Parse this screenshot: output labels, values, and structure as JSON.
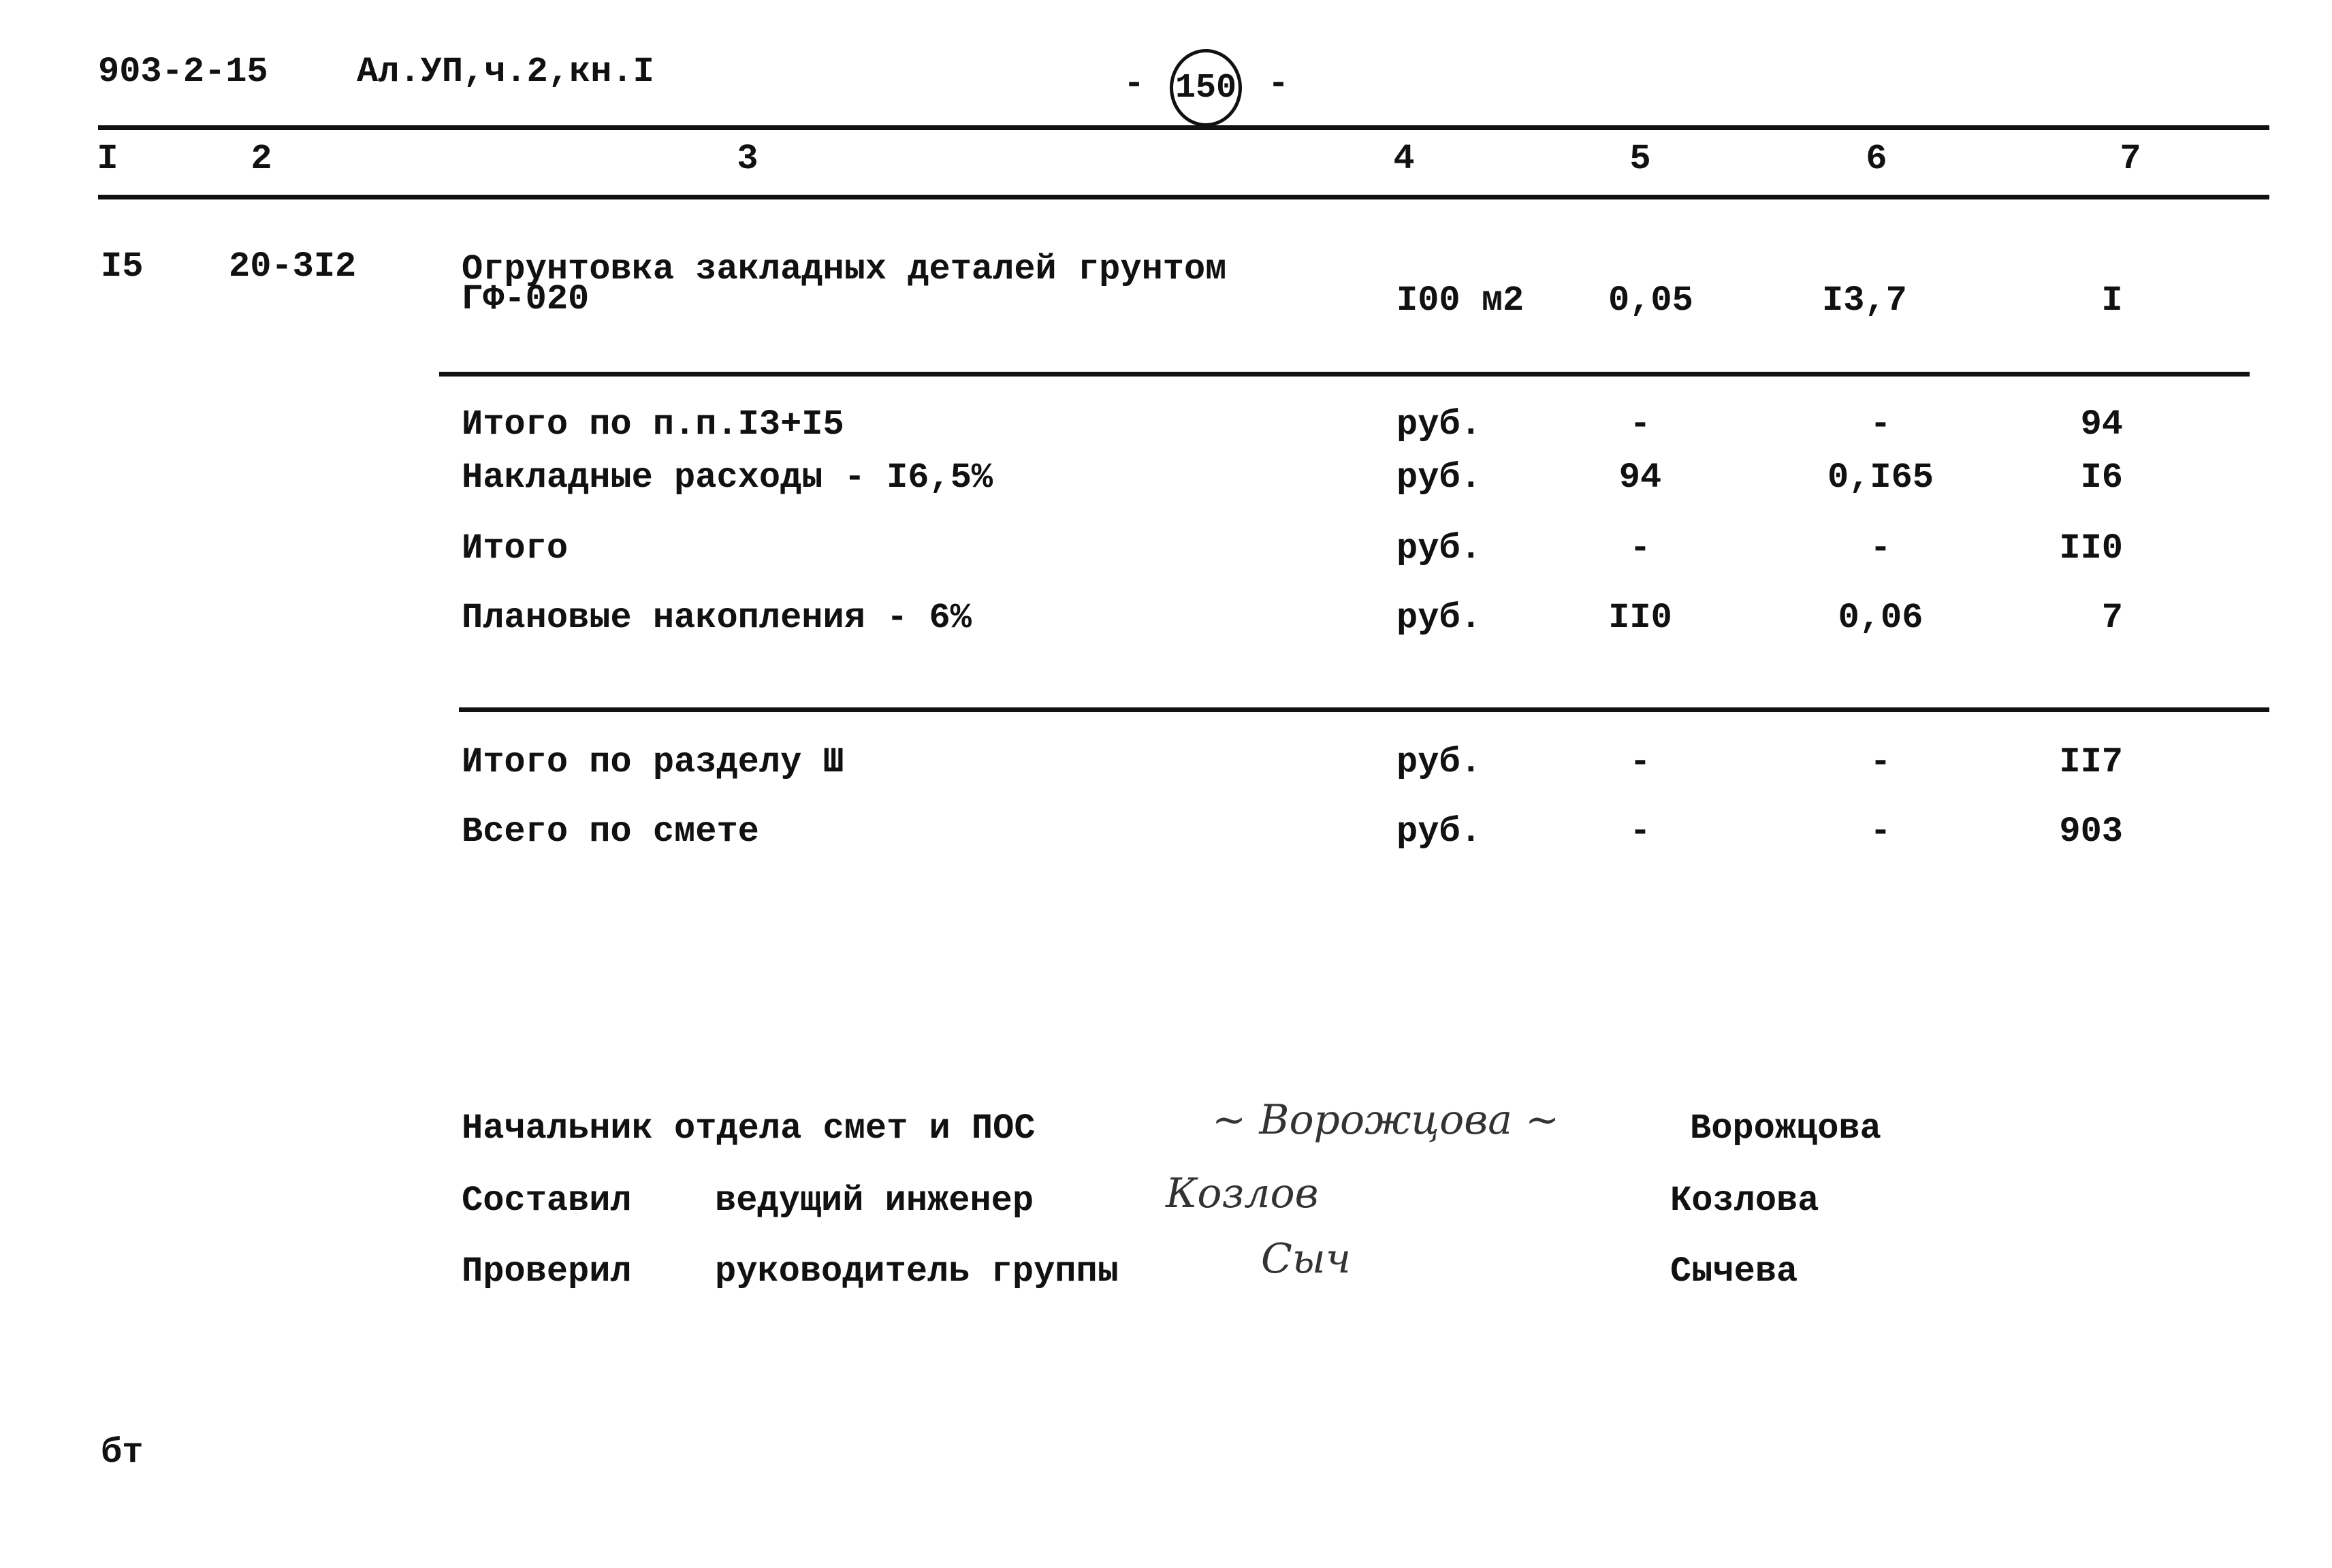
{
  "header": {
    "doc_code": "903-2-15",
    "album": "Ал.УП,ч.2,кн.I",
    "page_number": "150",
    "dash": "-"
  },
  "columns": [
    "I",
    "2",
    "3",
    "4",
    "5",
    "6",
    "7"
  ],
  "item": {
    "no": "I5",
    "code": "20-3I2",
    "name_line1": "Огрунтовка закладных деталей грунтом",
    "name_line2": "ГФ-020",
    "unit": "I00 м2",
    "qty": "0,05",
    "price": "I3,7",
    "total": "I"
  },
  "summary1": [
    {
      "label": "Итого по п.п.I3+I5",
      "unit": "руб.",
      "c5": "-",
      "c6": "-",
      "c7": "94"
    },
    {
      "label": "Накладные расходы - I6,5%",
      "unit": "руб.",
      "c5": "94",
      "c6": "0,I65",
      "c7": "I6"
    },
    {
      "label": "Итого",
      "unit": "руб.",
      "c5": "-",
      "c6": "-",
      "c7": "II0"
    },
    {
      "label": "Плановые накопления - 6%",
      "unit": "руб.",
      "c5": "II0",
      "c6": "0,06",
      "c7": "7"
    }
  ],
  "summary2": [
    {
      "label": "Итого по разделу Ш",
      "unit": "руб.",
      "c5": "-",
      "c6": "-",
      "c7": "II7"
    },
    {
      "label": "Всего по смете",
      "unit": "руб.",
      "c5": "-",
      "c6": "-",
      "c7": "903"
    }
  ],
  "signatures": [
    {
      "role": "Начальник отдела смет и ПОС",
      "position": "",
      "signature": "Ворожцова",
      "name": "Ворожцова"
    },
    {
      "role": "Составил",
      "position": "ведущий инженер",
      "signature": "Козлов",
      "name": "Козлова"
    },
    {
      "role": "Проверил",
      "position": "руководитель группы",
      "signature": "Сыч",
      "name": "Сычева"
    }
  ],
  "footer": {
    "mark": "бт"
  }
}
